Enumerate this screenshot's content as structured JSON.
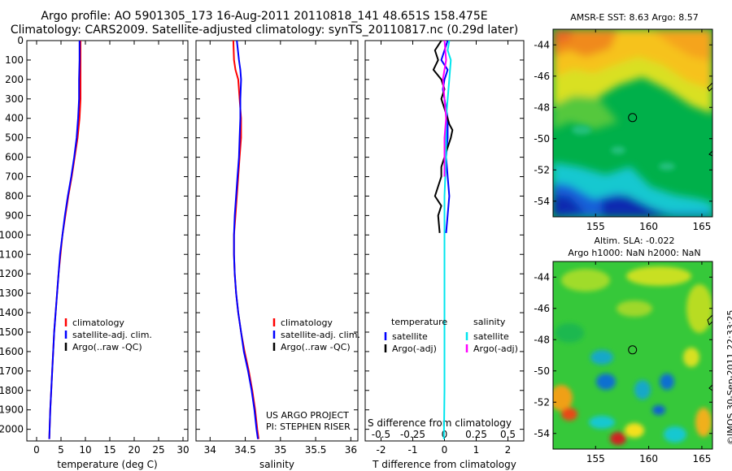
{
  "header": {
    "line1": "Argo profile: AO 5901305_173 16-Aug-2011 20110818_141 48.651S 158.475E",
    "line2": "Climatology: CARS2009. Satellite-adjusted climatology: synTS_20110817.nc (0.29d later)"
  },
  "credit": {
    "line1": "US ARGO PROJECT",
    "line2": "PI: STEPHEN RISER"
  },
  "stamp": "©IMOS 30-Sep-2011 22:33:25",
  "colors": {
    "climatology": "#ff0000",
    "satellite_adj": "#0000ff",
    "argo": "#000000",
    "diff_T_satellite": "#0000ff",
    "diff_S_satellite": "#00e5ee",
    "diff_S_argo": "#ff00ff"
  },
  "chart_data": [
    {
      "type": "line",
      "name": "temperature-profile",
      "xlabel": "temperature (deg C)",
      "ylabel": "",
      "xlim": [
        -2,
        31
      ],
      "ylim": [
        2060,
        0
      ],
      "xticks": [
        0,
        5,
        10,
        15,
        20,
        25,
        30
      ],
      "yticks": [
        0,
        100,
        200,
        300,
        400,
        500,
        600,
        700,
        800,
        900,
        1000,
        1100,
        1200,
        1300,
        1400,
        1500,
        1600,
        1700,
        1800,
        1900,
        2000
      ],
      "legend": [
        "climatology",
        "satellite-adj. clim.",
        "Argo(..raw -QC)"
      ],
      "series": [
        {
          "name": "climatology",
          "color": "#ff0000",
          "width": 2,
          "x": [
            9.0,
            9.0,
            9.0,
            9.0,
            8.9,
            8.8,
            8.4,
            7.8,
            7.2,
            6.5,
            5.9,
            5.3,
            4.9,
            4.5,
            4.2,
            3.9,
            3.6,
            3.4,
            3.2,
            3.0,
            2.8,
            2.6
          ],
          "y": [
            0,
            100,
            200,
            300,
            350,
            400,
            500,
            600,
            700,
            800,
            900,
            1000,
            1100,
            1200,
            1300,
            1400,
            1500,
            1600,
            1700,
            1800,
            1900,
            2050
          ]
        },
        {
          "name": "satellite-adj. clim.",
          "color": "#0000ff",
          "width": 2,
          "x": [
            8.8,
            8.8,
            8.7,
            8.7,
            8.6,
            8.5,
            8.2,
            7.7,
            7.1,
            6.4,
            5.8,
            5.3,
            4.8,
            4.5,
            4.2,
            3.9,
            3.6,
            3.4,
            3.2,
            3.0,
            2.8,
            2.6
          ],
          "y": [
            0,
            100,
            200,
            300,
            350,
            400,
            500,
            600,
            700,
            800,
            900,
            1000,
            1100,
            1200,
            1300,
            1400,
            1500,
            1600,
            1700,
            1800,
            1900,
            2050
          ]
        }
      ]
    },
    {
      "type": "line",
      "name": "salinity-profile",
      "xlabel": "salinity",
      "ylabel": "",
      "xlim": [
        33.8,
        36.1
      ],
      "ylim": [
        2060,
        0
      ],
      "xticks": [
        34,
        34.5,
        35,
        35.5,
        36
      ],
      "legend": [
        "climatology",
        "satellite-adj. clim.",
        "Argo(..raw -QC)"
      ],
      "series": [
        {
          "name": "climatology",
          "color": "#ff0000",
          "width": 2,
          "x": [
            34.33,
            34.34,
            34.36,
            34.4,
            34.42,
            34.44,
            34.44,
            34.42,
            34.4,
            34.38,
            34.36,
            34.34,
            34.34,
            34.35,
            34.37,
            34.4,
            34.44,
            34.49,
            34.55,
            34.6,
            34.64,
            34.67,
            34.69
          ],
          "y": [
            0,
            100,
            150,
            200,
            300,
            400,
            500,
            600,
            700,
            800,
            900,
            1000,
            1100,
            1200,
            1300,
            1400,
            1500,
            1600,
            1700,
            1800,
            1900,
            2000,
            2050
          ]
        },
        {
          "name": "satellite-adj. clim.",
          "color": "#0000ff",
          "width": 2,
          "x": [
            34.38,
            34.41,
            34.43,
            34.44,
            34.43,
            34.43,
            34.42,
            34.41,
            34.39,
            34.37,
            34.35,
            34.34,
            34.34,
            34.35,
            34.37,
            34.4,
            34.44,
            34.48,
            34.54,
            34.59,
            34.63,
            34.66,
            34.68
          ],
          "y": [
            0,
            100,
            150,
            200,
            300,
            400,
            500,
            600,
            700,
            800,
            900,
            1000,
            1100,
            1200,
            1300,
            1400,
            1500,
            1600,
            1700,
            1800,
            1900,
            2000,
            2050
          ]
        }
      ]
    },
    {
      "type": "line",
      "name": "difference-profile",
      "xlabel": "T difference from climatology",
      "xlabel_top": "S difference from climatology",
      "ylabel": "",
      "xlim": [
        -2.5,
        2.5
      ],
      "ylim": [
        2060,
        0
      ],
      "xticks": [
        -2,
        -1,
        0,
        1,
        2
      ],
      "xticks_top": [
        -0.5,
        -0.25,
        0,
        0.25,
        0.5
      ],
      "legend_headers": [
        "temperature",
        "salinity"
      ],
      "legend": [
        "satellite",
        "Argo(-adj)",
        "satellite",
        "Argo(-adj)"
      ],
      "series": [
        {
          "name": "T satellite",
          "color": "#0000ff",
          "width": 2,
          "x": [
            0.1,
            0.0,
            -0.1,
            0.1,
            0.0,
            -0.05,
            0.0,
            0.05,
            0.1,
            0.1,
            0.05,
            0.1,
            0.15,
            0.05
          ],
          "y": [
            0,
            50,
            100,
            150,
            200,
            250,
            300,
            350,
            400,
            500,
            600,
            700,
            800,
            990
          ]
        },
        {
          "name": "T Argo(-adj)",
          "color": "#000000",
          "width": 2,
          "x": [
            -0.1,
            -0.3,
            -0.2,
            -0.35,
            -0.1,
            0.0,
            -0.1,
            0.0,
            0.1,
            0.15,
            0.25,
            0.2,
            0.1,
            0.0,
            -0.1,
            -0.1,
            -0.2,
            -0.3,
            -0.1,
            -0.2,
            -0.15
          ],
          "y": [
            0,
            50,
            100,
            150,
            200,
            250,
            300,
            350,
            400,
            430,
            460,
            500,
            550,
            600,
            650,
            700,
            750,
            800,
            850,
            900,
            990
          ]
        },
        {
          "name": "S satellite",
          "color": "#00e5ee",
          "width": 2,
          "x": [
            0.15,
            0.1,
            0.2,
            0.15,
            0.1,
            0.05,
            0.05,
            0.0,
            0.0,
            0.0,
            0.0,
            0.0,
            0.0,
            -0.01,
            -0.02
          ],
          "y": [
            0,
            50,
            100,
            200,
            300,
            400,
            600,
            800,
            1000,
            1200,
            1400,
            1600,
            1800,
            1950,
            2050
          ]
        },
        {
          "name": "S Argo(-adj)",
          "color": "#ff00ff",
          "width": 2,
          "x": [
            0.0,
            0.05,
            -0.05,
            0.0,
            0.05,
            0.0,
            0.0,
            0.0
          ],
          "y": [
            0,
            100,
            200,
            300,
            400,
            500,
            600,
            700
          ]
        }
      ]
    },
    {
      "type": "heatmap",
      "name": "sst-map",
      "title": "AMSR-E SST: 8.63 Argo: 8.57",
      "xlim": [
        151,
        166
      ],
      "ylim": [
        -55,
        -43
      ],
      "xticks": [
        155,
        160,
        165
      ],
      "yticks": [
        -44,
        -46,
        -48,
        -50,
        -52,
        -54
      ],
      "marker": {
        "lon": 158.475,
        "lat": -48.651
      }
    },
    {
      "type": "heatmap",
      "name": "sla-map",
      "title": "Altim. SLA: -0.022",
      "subtitle": "Argo h1000: NaN h2000: NaN",
      "xlim": [
        151,
        166
      ],
      "ylim": [
        -55,
        -43
      ],
      "xticks": [
        155,
        160,
        165
      ],
      "yticks": [
        -44,
        -46,
        -48,
        -50,
        -52,
        -54
      ],
      "marker": {
        "lon": 158.475,
        "lat": -48.651
      }
    }
  ]
}
